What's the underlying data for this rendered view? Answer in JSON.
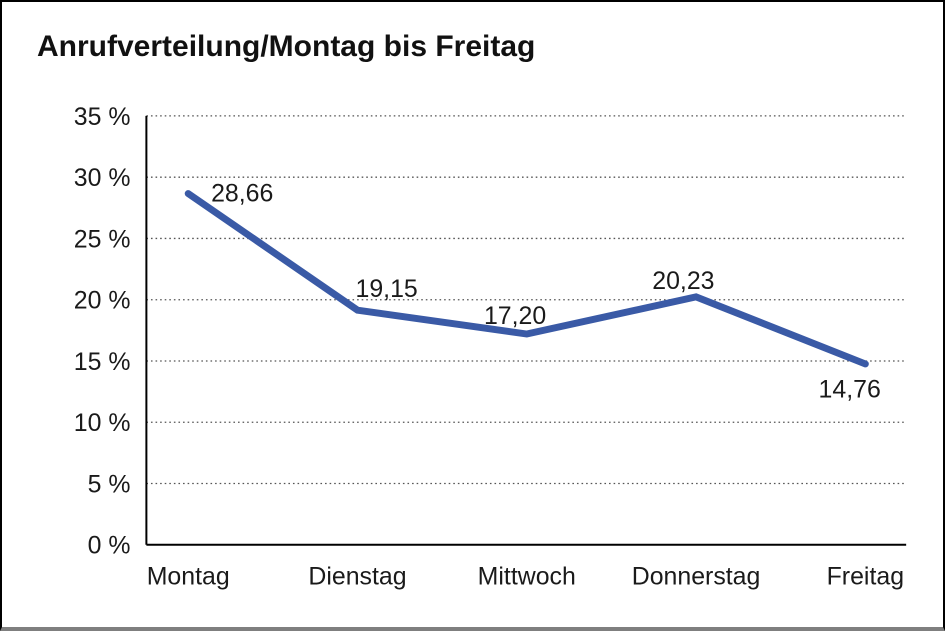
{
  "window": {
    "background": "#ffffff",
    "border_color": "#000000",
    "bottom_edge_color": "#7f7f7f"
  },
  "chart_data": {
    "type": "line",
    "title": "Anrufverteilung/Montag bis Freitag",
    "categories": [
      "Montag",
      "Dienstag",
      "Mittwoch",
      "Donnerstag",
      "Freitag"
    ],
    "series": [
      {
        "name": "Anrufverteilung",
        "values": [
          28.66,
          19.15,
          17.2,
          20.23,
          14.76
        ]
      }
    ],
    "data_labels": [
      "28,66",
      "19,15",
      "17,20",
      "20,23",
      "14,76"
    ],
    "y_ticks": [
      {
        "value": 0,
        "label": "0 %"
      },
      {
        "value": 5,
        "label": "5 %"
      },
      {
        "value": 10,
        "label": "10 %"
      },
      {
        "value": 15,
        "label": "15 %"
      },
      {
        "value": 20,
        "label": "20 %"
      },
      {
        "value": 25,
        "label": "25 %"
      },
      {
        "value": 30,
        "label": "30 %"
      },
      {
        "value": 35,
        "label": "35 %"
      }
    ],
    "xlabel": "",
    "ylabel": "",
    "ylim": [
      0,
      35
    ],
    "grid": "horizontal-dotted",
    "legend": "none",
    "line_color": "#3A5AA6",
    "axis_color": "#000000",
    "gridline_color": "#555555",
    "text_color": "#1a1a1a"
  }
}
